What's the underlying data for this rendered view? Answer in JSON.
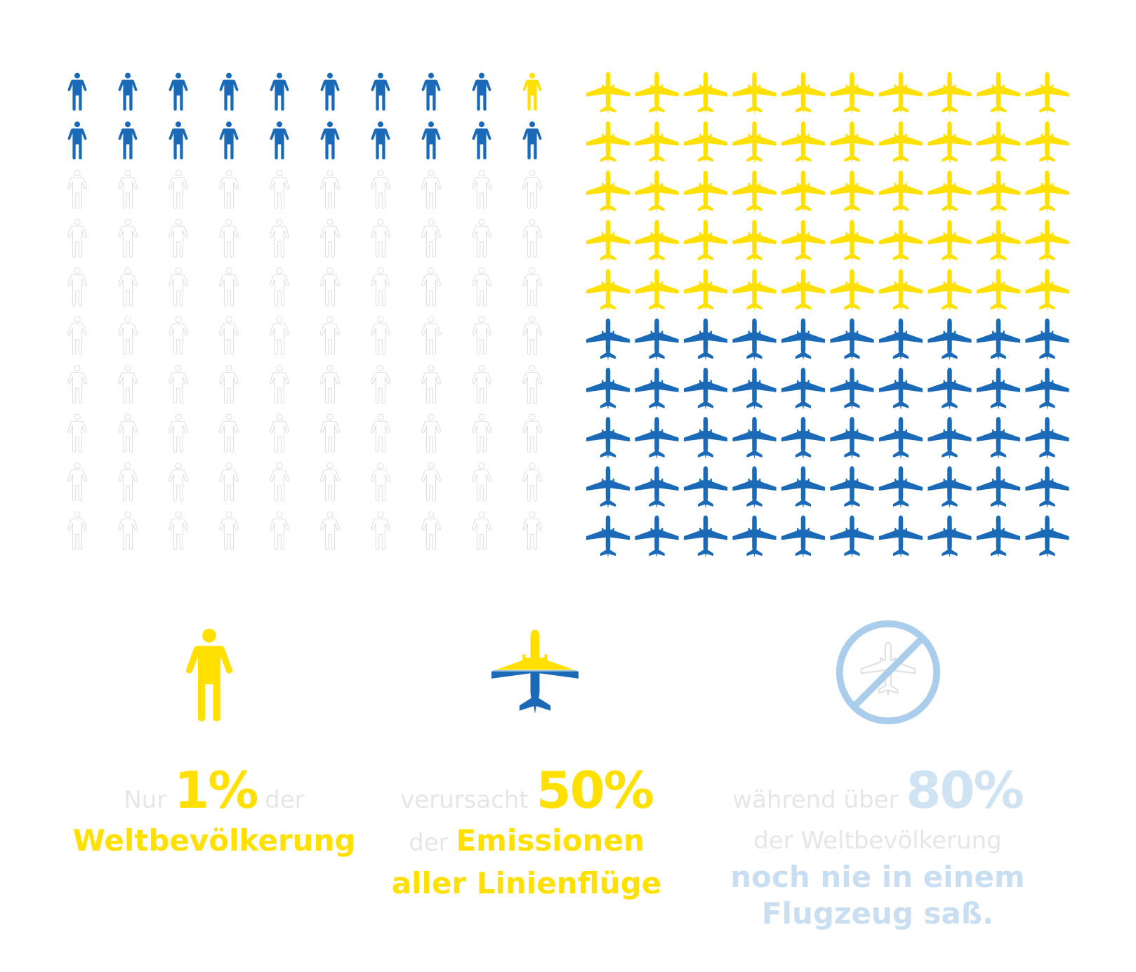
{
  "colors": {
    "blue": "#1a6ab8",
    "yellow": "#ffe000",
    "outline": "#dcdcdc",
    "lightblue": "#a9cdea",
    "pale_text": "#e6e6e6",
    "pale_blue_text": "#cfe3f3"
  },
  "people_grid": {
    "icon": "person-icon",
    "rows": 10,
    "cols": 10,
    "row_states": [
      [
        "blue",
        "blue",
        "blue",
        "blue",
        "blue",
        "blue",
        "blue",
        "blue",
        "blue",
        "yellow"
      ],
      [
        "blue",
        "blue",
        "blue",
        "blue",
        "blue",
        "blue",
        "blue",
        "blue",
        "blue",
        "blue"
      ],
      [
        "outline",
        "outline",
        "outline",
        "outline",
        "outline",
        "outline",
        "outline",
        "outline",
        "outline",
        "outline"
      ],
      [
        "outline",
        "outline",
        "outline",
        "outline",
        "outline",
        "outline",
        "outline",
        "outline",
        "outline",
        "outline"
      ],
      [
        "outline",
        "outline",
        "outline",
        "outline",
        "outline",
        "outline",
        "outline",
        "outline",
        "outline",
        "outline"
      ],
      [
        "outline",
        "outline",
        "outline",
        "outline",
        "outline",
        "outline",
        "outline",
        "outline",
        "outline",
        "outline"
      ],
      [
        "outline",
        "outline",
        "outline",
        "outline",
        "outline",
        "outline",
        "outline",
        "outline",
        "outline",
        "outline"
      ],
      [
        "outline",
        "outline",
        "outline",
        "outline",
        "outline",
        "outline",
        "outline",
        "outline",
        "outline",
        "outline"
      ],
      [
        "outline",
        "outline",
        "outline",
        "outline",
        "outline",
        "outline",
        "outline",
        "outline",
        "outline",
        "outline"
      ],
      [
        "outline",
        "outline",
        "outline",
        "outline",
        "outline",
        "outline",
        "outline",
        "outline",
        "outline",
        "outline"
      ]
    ]
  },
  "planes_grid": {
    "icon": "airplane-icon",
    "rows": 10,
    "cols": 10,
    "yellow_rows": 5,
    "blue_rows": 5
  },
  "stats": [
    {
      "icon": "person-icon",
      "line1": {
        "pre": "Nur ",
        "pct": "1%",
        "post": " der"
      },
      "line2": "Weltbevölkerung"
    },
    {
      "icon": "airplane-icon",
      "line1": {
        "pre": "verursacht ",
        "pct": "50%"
      },
      "line2": {
        "pre": "der ",
        "bold": "Emissionen"
      },
      "line3": "aller Linienflüge"
    },
    {
      "icon": "no-flight-icon",
      "line1": {
        "pre": "während über ",
        "pct": "80%"
      },
      "line2": "der Weltbevölkerung",
      "line3": "noch nie in einem",
      "line4": "Flugzeug saß."
    }
  ]
}
